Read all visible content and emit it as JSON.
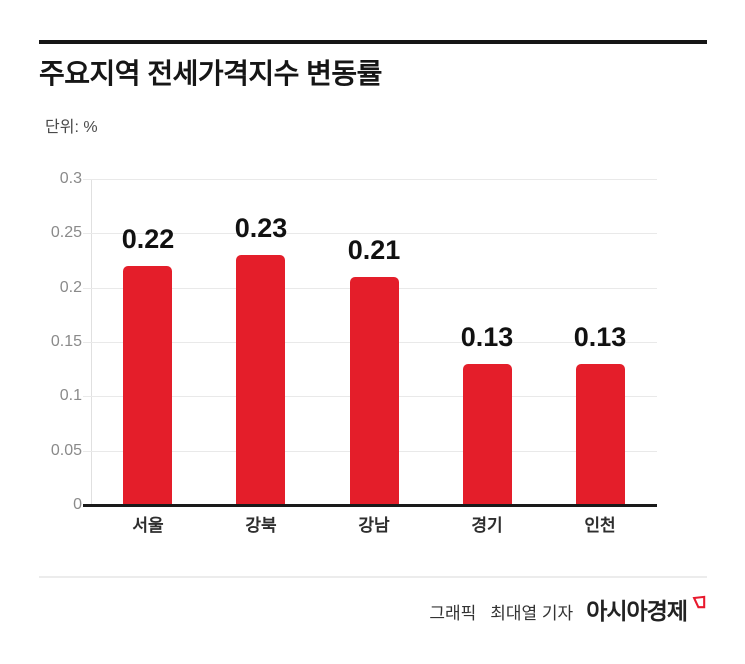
{
  "page": {
    "title": "주요지역 전세가격지수 변동률",
    "unit_label": "단위: %"
  },
  "footer": {
    "credit_prefix": "그래픽",
    "credit_name": "최대열 기자",
    "brand": "아시아경제",
    "brand_mark_icon": "red-flag-quote-mark",
    "brand_mark_color": "#e8192d"
  },
  "chart_data": {
    "type": "bar",
    "title": "주요지역 전세가격지수 변동률",
    "xlabel": "",
    "ylabel": "단위: %",
    "categories": [
      "서울",
      "강북",
      "강남",
      "경기",
      "인천"
    ],
    "values": [
      0.22,
      0.23,
      0.21,
      0.13,
      0.13
    ],
    "value_labels": [
      "0.22",
      "0.23",
      "0.21",
      "0.13",
      "0.13"
    ],
    "ylim": [
      0,
      0.3
    ],
    "yticks": [
      0,
      0.05,
      0.1,
      0.15,
      0.2,
      0.25,
      0.3
    ],
    "ytick_labels": [
      "0",
      "0.05",
      "0.1",
      "0.15",
      "0.2",
      "0.25",
      "0.3"
    ],
    "grid": true,
    "legend": false,
    "bar_color": "#e41e2a",
    "grid_color": "#e9e9e9",
    "axis_color": "#1a1a1a"
  }
}
